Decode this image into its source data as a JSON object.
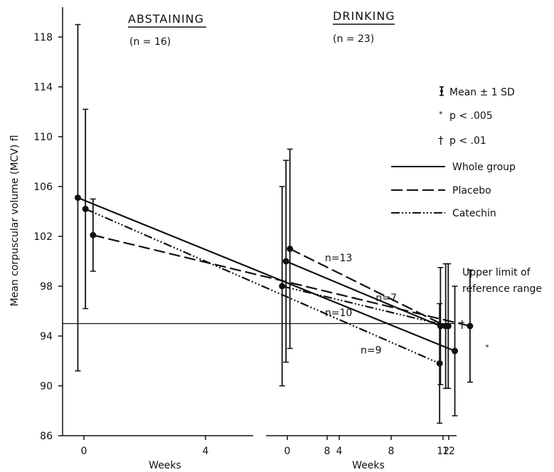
{
  "chart_data": [
    {
      "type": "line",
      "panel": "abstaining",
      "title": "ABSTAINING",
      "subtitle": "(n = 16)",
      "xlabel": "Weeks",
      "ylabel": "Mean corpuscular volume (MCV) fl",
      "xticks": [
        "0",
        "4",
        "8",
        "12"
      ],
      "yticks": [
        "86",
        "90",
        "94",
        "98",
        "102",
        "106",
        "110",
        "114",
        "118"
      ],
      "xlim": [
        -1,
        13.5
      ],
      "ylim": [
        86,
        119
      ],
      "series": [
        {
          "name": "Whole group",
          "points": [
            {
              "x": -0.2,
              "y": 105.1,
              "sd": 13.9
            },
            {
              "x": 12.2,
              "y": 92.8,
              "sd": 5.2
            }
          ]
        },
        {
          "name": "Placebo",
          "label": "n=7",
          "points": [
            {
              "x": 0.3,
              "y": 102.1,
              "sd": 2.9
            },
            {
              "x": 12.7,
              "y": 94.8,
              "sd": 4.5
            }
          ]
        },
        {
          "name": "Catechin",
          "label": "n=9",
          "points": [
            {
              "x": 0.05,
              "y": 104.2,
              "sd": 8.0
            },
            {
              "x": 11.7,
              "y": 91.8,
              "sd": 4.8
            }
          ]
        }
      ],
      "annotations": [
        {
          "text": "*",
          "x": 13.2,
          "y": 92.9
        }
      ]
    },
    {
      "type": "line",
      "panel": "drinking",
      "title": "DRINKING",
      "subtitle": "(n = 23)",
      "xlabel": "Weeks",
      "xticks": [
        "0",
        "4",
        "8",
        "12"
      ],
      "xlim": [
        -1,
        13.5
      ],
      "ylim": [
        86,
        119
      ],
      "series": [
        {
          "name": "Whole group",
          "points": [
            {
              "x": -0.1,
              "y": 100.0,
              "sd": 8.1
            },
            {
              "x": 11.8,
              "y": 94.8,
              "sd": 4.7
            }
          ]
        },
        {
          "name": "Placebo",
          "label": "n=13",
          "points": [
            {
              "x": 0.2,
              "y": 101.0,
              "sd": 8.0
            },
            {
              "x": 12.2,
              "y": 94.8,
              "sd": 5.0
            }
          ]
        },
        {
          "name": "Catechin",
          "label": "n=10",
          "points": [
            {
              "x": -0.4,
              "y": 98.0,
              "sd": 8.0
            },
            {
              "x": 12.4,
              "y": 94.8,
              "sd": 5.0
            }
          ]
        }
      ]
    }
  ],
  "reference_line": {
    "y": 95.0,
    "label_line1": "Upper limit of",
    "label_line2": "reference range",
    "symbol": "†"
  },
  "legend": {
    "mean_sd": "Mean ± 1 SD",
    "p005": "p < .005",
    "p005_symbol": "*",
    "p01": "p < .01",
    "p01_symbol": "†",
    "whole_group": "Whole group",
    "placebo": "Placebo",
    "catechin": "Catechin"
  }
}
